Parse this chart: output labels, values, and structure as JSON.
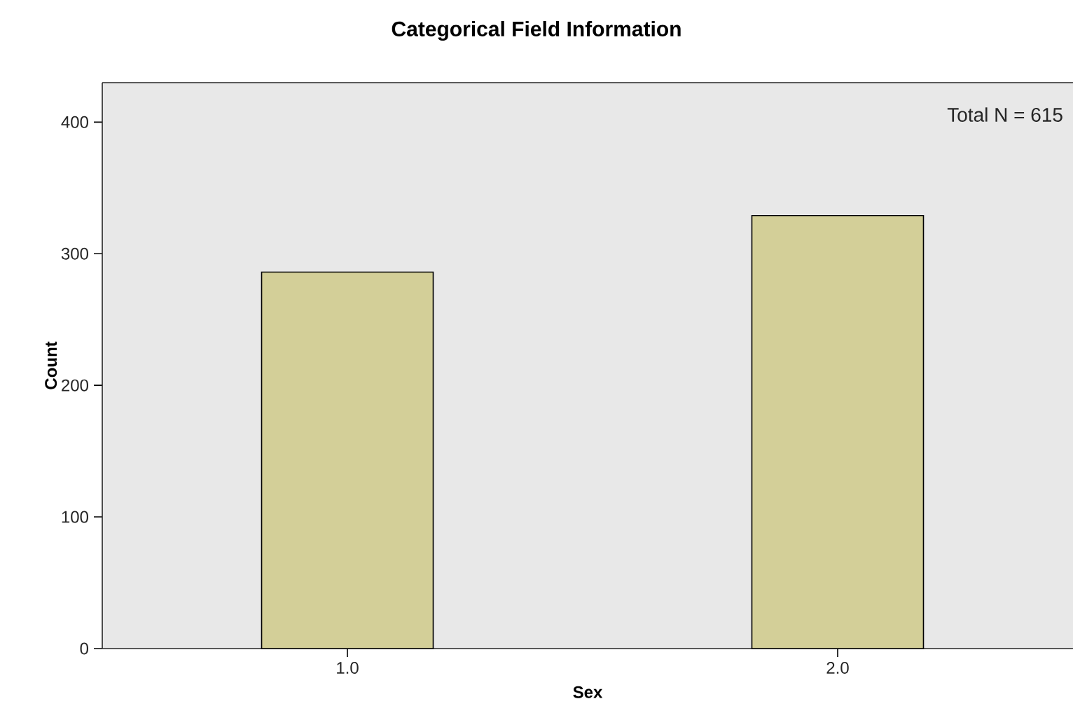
{
  "chart_data": {
    "type": "bar",
    "title": "Categorical Field Information",
    "xlabel": "Sex",
    "ylabel": "Count",
    "categories": [
      "1.0",
      "2.0"
    ],
    "values": [
      286,
      329
    ],
    "color": "#d3cf98",
    "ylim": [
      0,
      430
    ],
    "yticks": [
      0,
      100,
      200,
      300,
      400
    ],
    "annotations": [
      "Total N = 615"
    ]
  }
}
